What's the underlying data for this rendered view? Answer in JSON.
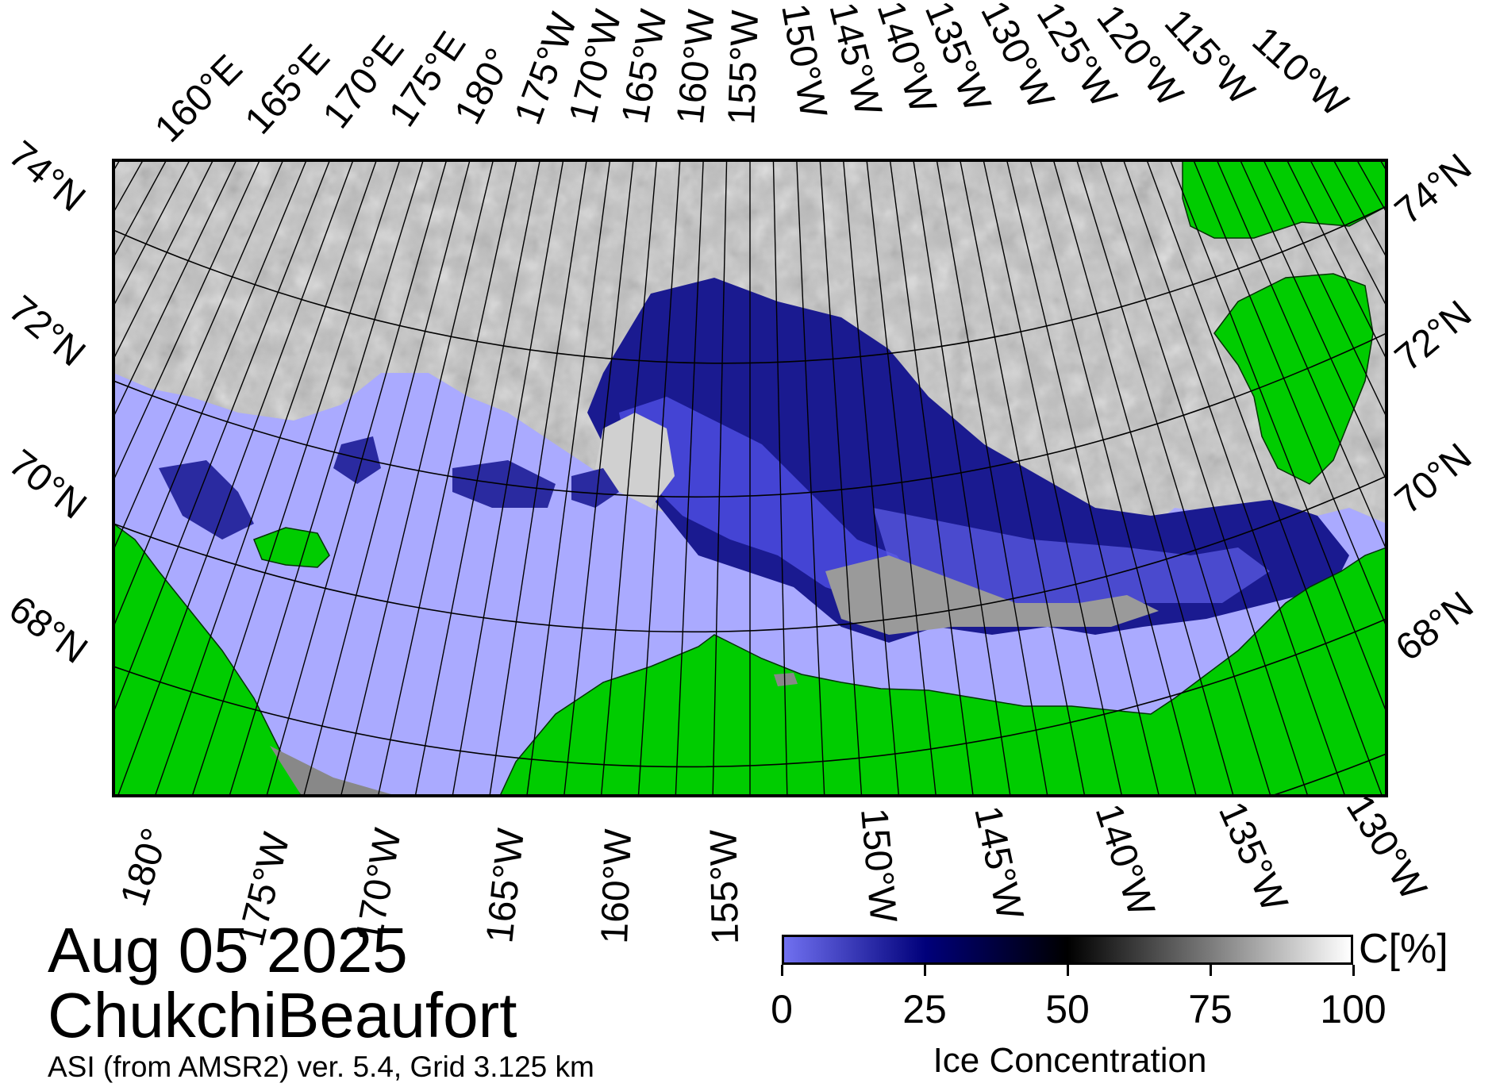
{
  "map": {
    "projection": "polar-stereographic",
    "region": "ChukchiBeaufort",
    "top_lon_labels": [
      "160°E",
      "165°E",
      "170°E",
      "175°E",
      "180°",
      "175°W",
      "170°W",
      "165°W",
      "160°W",
      "155°W",
      "150°W",
      "145°W",
      "140°W",
      "135°W",
      "130°W",
      "125°W",
      "120°W",
      "115°W",
      "110°W"
    ],
    "bottom_lon_labels": [
      "180°",
      "175°W",
      "170°W",
      "165°W",
      "160°W",
      "155°W",
      "150°W",
      "145°W",
      "140°W",
      "135°W",
      "130°W"
    ],
    "left_lat_labels": [
      "74°N",
      "72°N",
      "70°N",
      "68°N"
    ],
    "right_lat_labels": [
      "74°N",
      "72°N",
      "70°N",
      "68°N"
    ],
    "colors": {
      "land": "#00cc00",
      "open_water": "#aaaaff",
      "no_data": "#888888",
      "ice_low": "#6a6af0",
      "ice_mid": "#000060",
      "ice_high": "#ffffff"
    }
  },
  "caption": {
    "date": "Aug 05 2025",
    "region": "ChukchiBeaufort",
    "product": "ASI (from AMSR2) ver. 5.4,  Grid 3.125 km"
  },
  "colorbar": {
    "unit": "C[%]",
    "title": "Ice Concentration",
    "ticks": [
      "0",
      "25",
      "50",
      "75",
      "100"
    ],
    "range": [
      0,
      100
    ],
    "stops": [
      {
        "value": 0,
        "color": "#7070f0"
      },
      {
        "value": 25,
        "color": "#00007a"
      },
      {
        "value": 50,
        "color": "#000000"
      },
      {
        "value": 75,
        "color": "#7a7a7a"
      },
      {
        "value": 100,
        "color": "#ffffff"
      }
    ]
  }
}
